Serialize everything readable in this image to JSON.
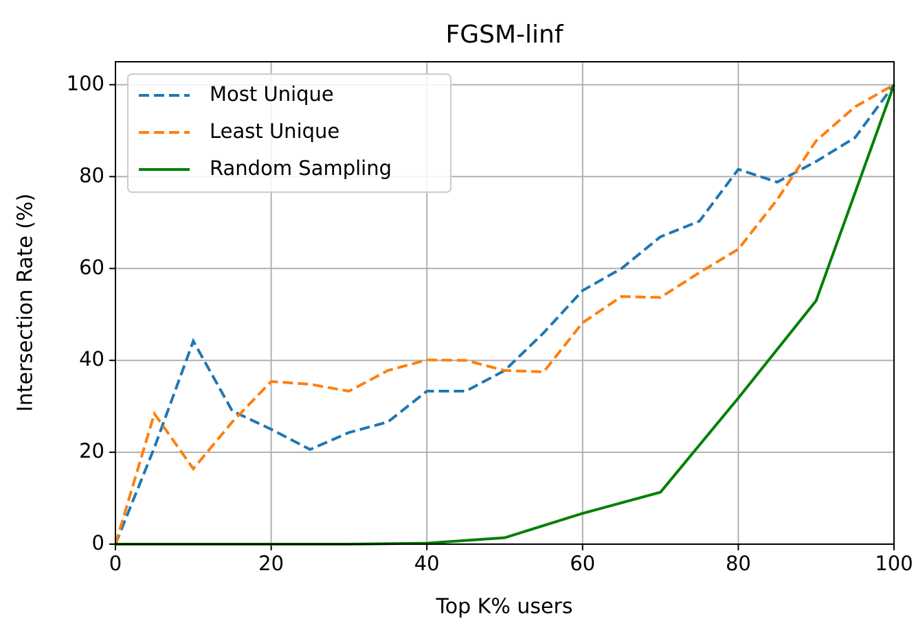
{
  "chart_data": {
    "type": "line",
    "title": "FGSM-linf",
    "x_label": "Top K% users",
    "y_label": "Intersection Rate (%)",
    "xlim": [
      0,
      100
    ],
    "ylim": [
      0,
      105
    ],
    "xticks": [
      0,
      20,
      40,
      60,
      80,
      100
    ],
    "yticks": [
      0,
      20,
      40,
      60,
      80,
      100
    ],
    "grid": true,
    "legend": "upper left",
    "series": [
      {
        "name": "Most Unique",
        "color": "#1f77b4",
        "dash": true,
        "x": [
          0,
          5,
          10,
          15,
          20,
          25,
          30,
          35,
          40,
          45,
          50,
          55,
          60,
          65,
          70,
          75,
          80,
          85,
          90,
          95,
          100
        ],
        "values": [
          0,
          21,
          44.2,
          29,
          25,
          20.6,
          24.3,
          26.6,
          33.3,
          33.3,
          37.8,
          46,
          55.2,
          60,
          66.9,
          70.3,
          81.6,
          78.8,
          83.3,
          88.5,
          100
        ]
      },
      {
        "name": "Least Unique",
        "color": "#ff7f0e",
        "dash": true,
        "x": [
          0,
          5,
          10,
          15,
          20,
          25,
          30,
          35,
          40,
          45,
          50,
          55,
          60,
          65,
          70,
          75,
          80,
          85,
          90,
          95,
          100
        ],
        "values": [
          0,
          28.4,
          16.4,
          26.6,
          35.4,
          34.8,
          33.3,
          37.8,
          40.1,
          40,
          37.8,
          37.5,
          48.2,
          53.9,
          53.7,
          59.1,
          64.2,
          75,
          87.8,
          95.2,
          100
        ]
      },
      {
        "name": "Random Sampling",
        "color": "#008000",
        "dash": false,
        "x": [
          0,
          10,
          20,
          30,
          40,
          50,
          60,
          70,
          80,
          90,
          100
        ],
        "values": [
          0,
          0,
          0,
          0,
          0.2,
          1.4,
          6.7,
          11.3,
          31.8,
          53,
          100
        ]
      }
    ]
  }
}
